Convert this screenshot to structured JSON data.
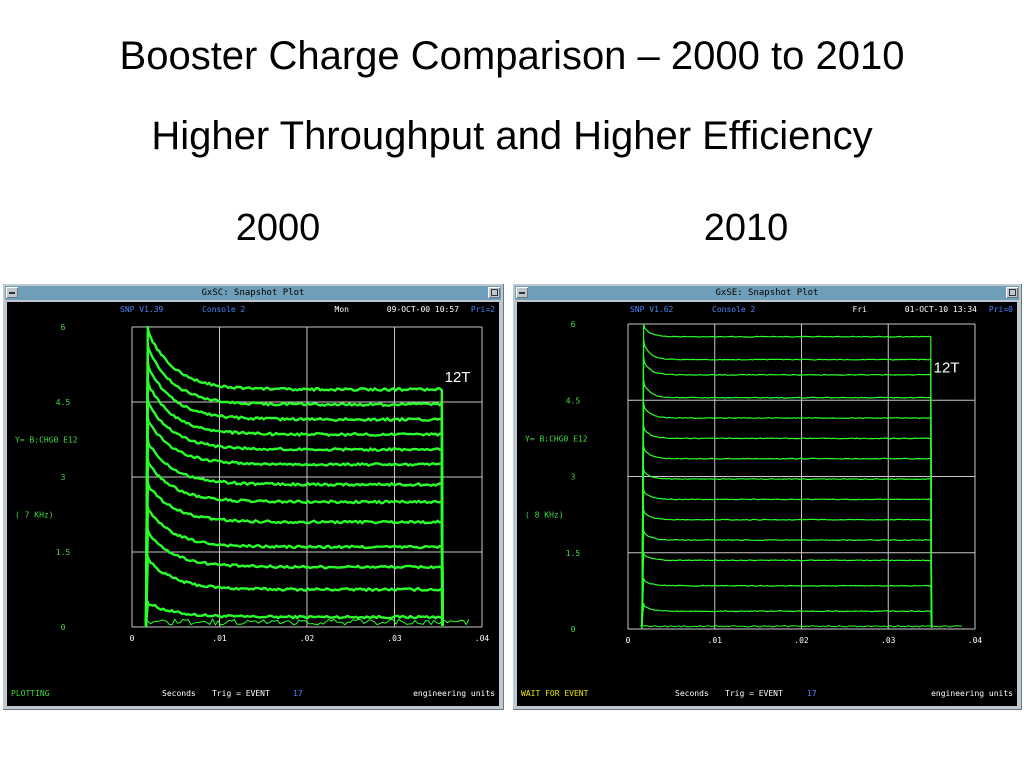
{
  "slide": {
    "title": "Booster Charge Comparison – 2000 to 2010",
    "subtitle": "Higher Throughput and Higher Efficiency"
  },
  "colors": {
    "trace": "#2bff2b",
    "text_green": "#3cdc3c",
    "text_blue": "#4a86ff",
    "grid": "#c8c8c8",
    "bg": "#000000",
    "titlebar": "#6f9fb8"
  },
  "panels": [
    {
      "year": "2000",
      "window_title": "GxSC: Snapshot Plot",
      "header": {
        "version": "SNP V1.39",
        "console": "Console   2",
        "day": "Mon",
        "datetime": "09-OCT-00 10:57",
        "pri": "Pri=2"
      },
      "y_param": "Y= B:CHG0   E12",
      "rate": "( 7   KHz)",
      "x_unit": "Seconds",
      "trigger": "Trig = EVENT",
      "trigger_num": "17",
      "units": "engineering units",
      "status": "PLOTTING",
      "annotation": "12T"
    },
    {
      "year": "2010",
      "window_title": "GxSE: Snapshot Plot",
      "header": {
        "version": "SNP V1.62",
        "console": "Console   2",
        "day": "Fri",
        "datetime": "01-OCT-10 13:34",
        "pri": "Pri=0"
      },
      "y_param": "Y= B:CHG0   E12",
      "rate": "( 8   KHz)",
      "x_unit": "Seconds",
      "trigger": "Trig = EVENT",
      "trigger_num": "17",
      "units": "engineering units",
      "status": "WAIT FOR EVENT",
      "annotation": "12T"
    }
  ],
  "chart_data": [
    {
      "type": "line",
      "title": "2000",
      "xlabel": "Seconds",
      "ylabel": "B:CHG0 E12",
      "xlim": [
        0,
        0.04
      ],
      "ylim": [
        0,
        6
      ],
      "x_ticks": [
        "0",
        ".01",
        ".02",
        ".03",
        ".04"
      ],
      "y_ticks": [
        "0",
        "1.5",
        "3",
        "4.5",
        "6"
      ],
      "grid": true,
      "beam_on": 0.0016,
      "beam_off": 0.0355,
      "plateaus": [
        0.2,
        0.75,
        1.2,
        1.6,
        2.1,
        2.5,
        2.85,
        3.25,
        3.55,
        3.85,
        4.15,
        4.45,
        4.75
      ],
      "peaks": [
        0.5,
        1.4,
        1.95,
        2.4,
        2.9,
        3.35,
        3.75,
        4.2,
        4.55,
        4.95,
        5.3,
        5.65,
        6.0
      ],
      "decay_tau": 0.003,
      "noise": 0.05,
      "annotation": "12T"
    },
    {
      "type": "line",
      "title": "2010",
      "xlabel": "Seconds",
      "ylabel": "B:CHG0 E12",
      "xlim": [
        0,
        0.04
      ],
      "ylim": [
        0,
        6
      ],
      "x_ticks": [
        "0",
        ".01",
        ".02",
        ".03",
        ".04"
      ],
      "y_ticks": [
        "0",
        "1.5",
        "3",
        "4.5",
        "6"
      ],
      "grid": true,
      "beam_on": 0.0016,
      "beam_off": 0.035,
      "plateaus": [
        0.35,
        0.85,
        1.35,
        1.75,
        2.15,
        2.55,
        2.95,
        3.35,
        3.75,
        4.15,
        4.55,
        5.0,
        5.3,
        5.75
      ],
      "peaks": [
        0.5,
        1.0,
        1.5,
        1.95,
        2.35,
        2.75,
        3.15,
        3.6,
        4.0,
        4.45,
        4.9,
        5.35,
        5.7,
        6.0
      ],
      "decay_tau": 0.0008,
      "noise": 0.015,
      "annotation": "12T"
    }
  ]
}
